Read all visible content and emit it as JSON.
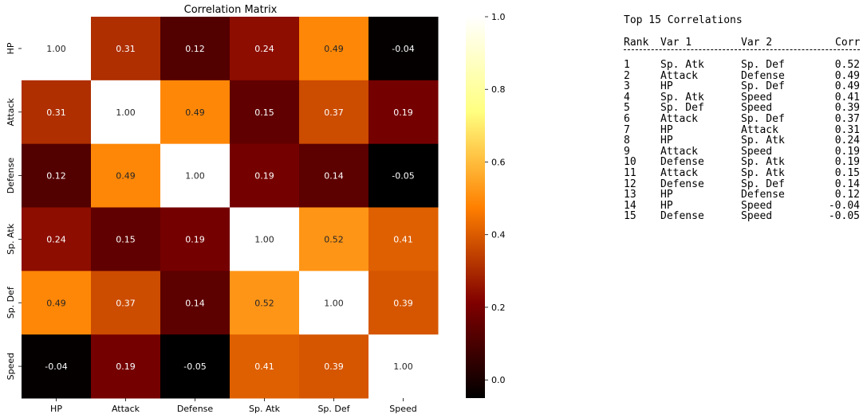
{
  "chart_data": {
    "type": "heatmap",
    "title": "Correlation Matrix",
    "variables": [
      "HP",
      "Attack",
      "Defense",
      "Sp. Atk",
      "Sp. Def",
      "Speed"
    ],
    "matrix": [
      [
        1.0,
        0.31,
        0.12,
        0.24,
        0.49,
        -0.04
      ],
      [
        0.31,
        1.0,
        0.49,
        0.15,
        0.37,
        0.19
      ],
      [
        0.12,
        0.49,
        1.0,
        0.19,
        0.14,
        -0.05
      ],
      [
        0.24,
        0.15,
        0.19,
        1.0,
        0.52,
        0.41
      ],
      [
        0.49,
        0.37,
        0.14,
        0.52,
        1.0,
        0.39
      ],
      [
        -0.04,
        0.19,
        -0.05,
        0.41,
        0.39,
        1.0
      ]
    ],
    "value_format": "2 decimals",
    "colormap": "afmhot",
    "colorbar": {
      "range": [
        -0.05,
        1.0
      ],
      "ticks": [
        "0.0",
        "0.2",
        "0.4",
        "0.6",
        "0.8",
        "1.0"
      ],
      "tick_values": [
        0.0,
        0.2,
        0.4,
        0.6,
        0.8,
        1.0
      ]
    },
    "grid": false
  },
  "table": {
    "title": "Top 15 Correlations",
    "headers": [
      "Rank",
      "Var 1",
      "Var 2",
      "Corr"
    ],
    "rows": [
      [
        "1",
        "Sp. Atk",
        "Sp. Def",
        "0.52"
      ],
      [
        "2",
        "Attack",
        "Defense",
        "0.49"
      ],
      [
        "3",
        "HP",
        "Sp. Def",
        "0.49"
      ],
      [
        "4",
        "Sp. Atk",
        "Speed",
        "0.41"
      ],
      [
        "5",
        "Sp. Def",
        "Speed",
        "0.39"
      ],
      [
        "6",
        "Attack",
        "Sp. Def",
        "0.37"
      ],
      [
        "7",
        "HP",
        "Attack",
        "0.31"
      ],
      [
        "8",
        "HP",
        "Sp. Atk",
        "0.24"
      ],
      [
        "9",
        "Attack",
        "Speed",
        "0.19"
      ],
      [
        "10",
        "Defense",
        "Sp. Atk",
        "0.19"
      ],
      [
        "11",
        "Attack",
        "Sp. Atk",
        "0.15"
      ],
      [
        "12",
        "Defense",
        "Sp. Def",
        "0.14"
      ],
      [
        "13",
        "HP",
        "Defense",
        "0.12"
      ],
      [
        "14",
        "HP",
        "Speed",
        "-0.04"
      ],
      [
        "15",
        "Defense",
        "Speed",
        "-0.05"
      ]
    ]
  }
}
